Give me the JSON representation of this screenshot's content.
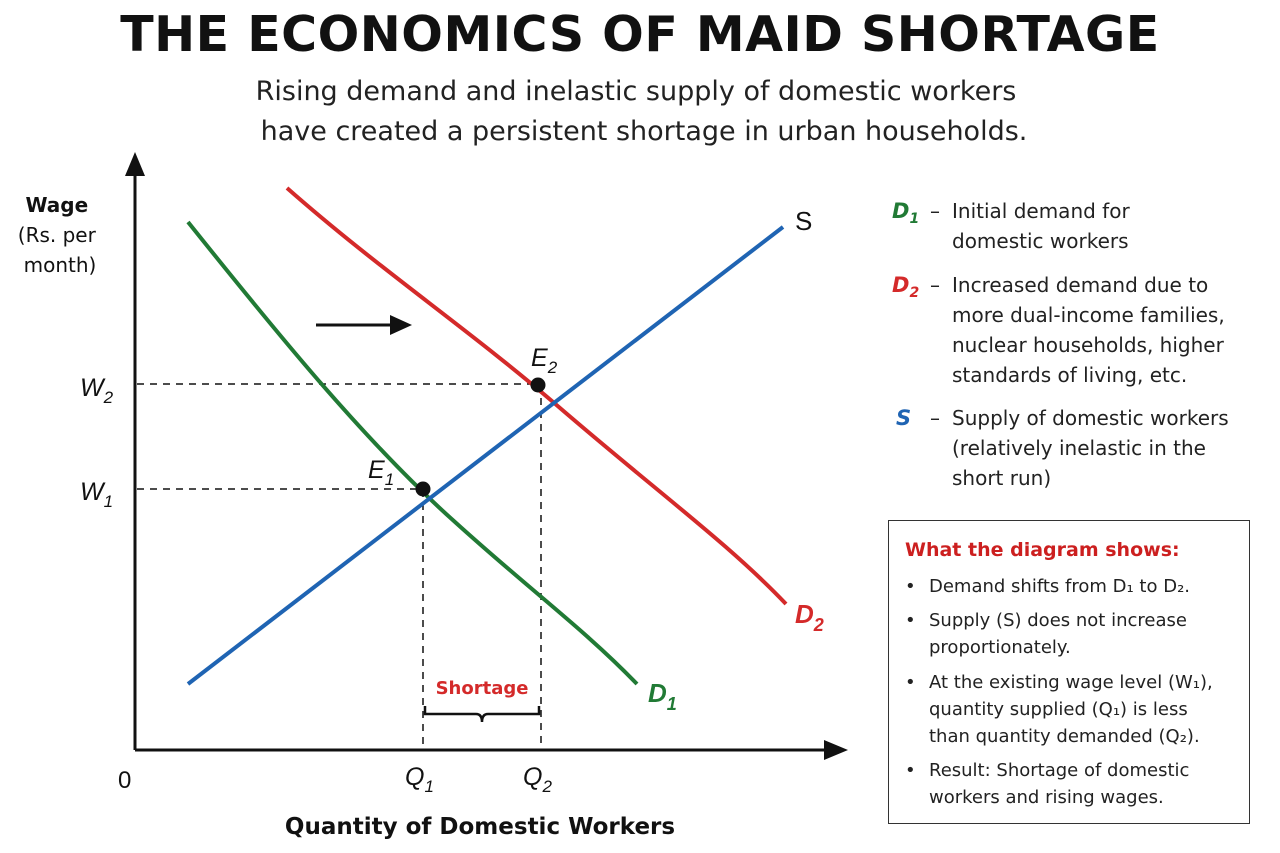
{
  "title": "THE ECONOMICS OF MAID SHORTAGE",
  "subtitle_lines": [
    "Rising demand and inelastic supply of domestic workers",
    "have created a persistent shortage in urban households."
  ],
  "colors": {
    "d1": "#217a35",
    "d2": "#d42a2a",
    "s": "#1f64b3",
    "note_heading": "#cc1f1f"
  },
  "diagram": {
    "y_axis_label": [
      "Wage",
      "(Rs. per",
      "month)"
    ],
    "x_axis_label": "Quantity of Domestic Workers",
    "origin_label": "0",
    "curve_labels": {
      "s": "S",
      "d1": "D",
      "d1_sub": "1",
      "d2": "D",
      "d2_sub": "2"
    },
    "points": {
      "e1": {
        "label": "E",
        "sub": "1"
      },
      "e2": {
        "label": "E",
        "sub": "2"
      }
    },
    "wage_levels": [
      {
        "label": "W",
        "sub": "1"
      },
      {
        "label": "W",
        "sub": "2"
      }
    ],
    "quantity_levels": [
      {
        "label": "Q",
        "sub": "1"
      },
      {
        "label": "Q",
        "sub": "2"
      }
    ],
    "shortage_label": "Shortage",
    "shift_arrow": "right-arrow-icon"
  },
  "legend": [
    {
      "symbol": "D",
      "sub": "1",
      "dash": "–",
      "lines": [
        "Initial demand for",
        "domestic workers"
      ]
    },
    {
      "symbol": "D",
      "sub": "2",
      "dash": "–",
      "lines": [
        "Increased demand due to",
        "more dual-income families,",
        "nuclear households, higher",
        "standards of living, etc."
      ]
    },
    {
      "symbol": "S",
      "sub": "",
      "dash": "–",
      "lines": [
        "Supply of domestic workers",
        "(relatively inelastic in the",
        "short run)"
      ]
    }
  ],
  "notes": {
    "heading": "What the diagram shows:",
    "bullets": [
      [
        "Demand shifts from D₁ to D₂."
      ],
      [
        "Supply (S) does not increase",
        "proportionately."
      ],
      [
        "At the existing wage level (W₁),",
        "quantity supplied (Q₁) is less",
        "than quantity demanded (Q₂)."
      ],
      [
        "Result: Shortage of domestic",
        "workers and rising wages."
      ]
    ]
  }
}
